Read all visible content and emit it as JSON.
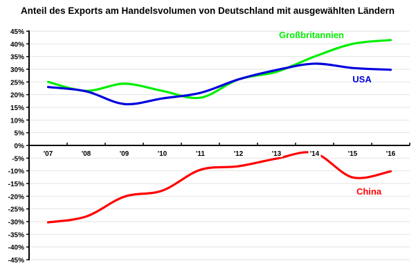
{
  "chart_data": {
    "type": "line",
    "title": "Anteil des Exports am Handelsvolumen von Deutschland mit ausgewählten Ländern",
    "xlabel": "",
    "ylabel": "",
    "categories": [
      "'07",
      "'08",
      "'09",
      "'10",
      "'11",
      "'12",
      "'13",
      "'14",
      "'15",
      "'16"
    ],
    "ylim": [
      -45,
      45
    ],
    "ytick_step": 5,
    "ytick_labels": [
      "45%",
      "40%",
      "35%",
      "30%",
      "25%",
      "20%",
      "15%",
      "10%",
      "5%",
      "0%",
      "-5%",
      "-10%",
      "-15%",
      "-20%",
      "-25%",
      "-30%",
      "-35%",
      "-40%",
      "-45%"
    ],
    "grid": true,
    "legend": "inline labels",
    "series": [
      {
        "name": "Großbritannien",
        "color": "#00ee00",
        "values": [
          25.0,
          21.5,
          24.3,
          21.5,
          18.8,
          26.0,
          29.0,
          35.0,
          40.0,
          41.5
        ]
      },
      {
        "name": "USA",
        "color": "#0000dd",
        "values": [
          23.0,
          21.3,
          16.3,
          18.5,
          20.7,
          26.0,
          29.7,
          32.2,
          30.5,
          29.8
        ]
      },
      {
        "name": "China",
        "color": "#ff0000",
        "values": [
          -30.3,
          -28.0,
          -20.2,
          -17.8,
          -9.6,
          -8.2,
          -5.2,
          -3.0,
          -12.6,
          -10.2
        ]
      }
    ]
  }
}
